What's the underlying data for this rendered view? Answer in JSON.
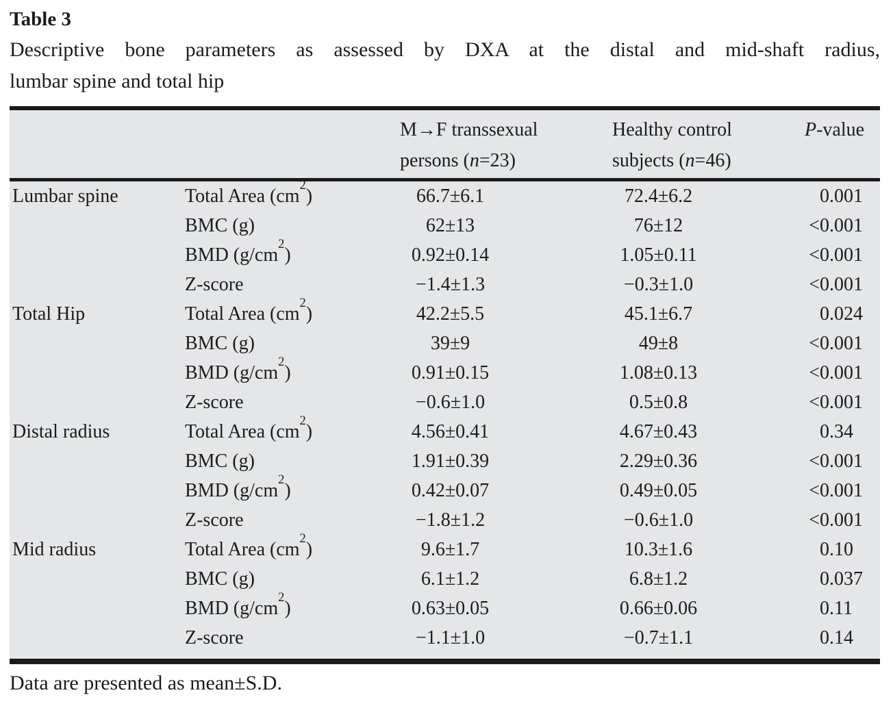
{
  "page": {
    "title": "Table 3",
    "caption_line1": "Descriptive bone parameters as assessed by DXA at the distal and mid-shaft radius,",
    "caption_line2": "lumbar spine and total hip",
    "footnote": "Data are presented as mean±S.D."
  },
  "colors": {
    "table_background": "#e5e6e7",
    "rule": "#1a1a18",
    "text": "#1d1c1a",
    "page_background": "#ffffff"
  },
  "table": {
    "columns": {
      "site": "",
      "parameter": "",
      "group1": {
        "line1": "M→F transsexual",
        "line2": "persons (n=23)"
      },
      "group2": {
        "line1": "Healthy control",
        "line2": "subjects (n=46)"
      },
      "p": "P-value"
    },
    "sections": [
      {
        "site": "Lumbar spine",
        "rows": [
          {
            "parameter": "Total Area (cm²)",
            "group1": "66.7±6.1",
            "group2": "72.4±6.2",
            "p": "0.001"
          },
          {
            "parameter": "BMC (g)",
            "group1": "62±13",
            "group2": "76±12",
            "p": "<0.001"
          },
          {
            "parameter": "BMD (g/cm²)",
            "group1": "0.92±0.14",
            "group2": "1.05±0.11",
            "p": "<0.001"
          },
          {
            "parameter": "Z-score",
            "group1": "−1.4±1.3",
            "group2": "−0.3±1.0",
            "p": "<0.001"
          }
        ]
      },
      {
        "site": "Total Hip",
        "rows": [
          {
            "parameter": "Total Area (cm²)",
            "group1": "42.2±5.5",
            "group2": "45.1±6.7",
            "p": "0.024"
          },
          {
            "parameter": "BMC (g)",
            "group1": "39±9",
            "group2": "49±8",
            "p": "<0.001"
          },
          {
            "parameter": "BMD (g/cm²)",
            "group1": "0.91±0.15",
            "group2": "1.08±0.13",
            "p": "<0.001"
          },
          {
            "parameter": "Z-score",
            "group1": "−0.6±1.0",
            "group2": "0.5±0.8",
            "p": "<0.001"
          }
        ]
      },
      {
        "site": "Distal radius",
        "rows": [
          {
            "parameter": "Total Area (cm²)",
            "group1": "4.56±0.41",
            "group2": "4.67±0.43",
            "p": "0.34"
          },
          {
            "parameter": "BMC (g)",
            "group1": "1.91±0.39",
            "group2": "2.29±0.36",
            "p": "<0.001"
          },
          {
            "parameter": "BMD (g/cm²)",
            "group1": "0.42±0.07",
            "group2": "0.49±0.05",
            "p": "<0.001"
          },
          {
            "parameter": "Z-score",
            "group1": "−1.8±1.2",
            "group2": "−0.6±1.0",
            "p": "<0.001"
          }
        ]
      },
      {
        "site": "Mid radius",
        "rows": [
          {
            "parameter": "Total Area (cm²)",
            "group1": "9.6±1.7",
            "group2": "10.3±1.6",
            "p": "0.10"
          },
          {
            "parameter": "BMC (g)",
            "group1": "6.1±1.2",
            "group2": "6.8±1.2",
            "p": "0.037"
          },
          {
            "parameter": "BMD (g/cm²)",
            "group1": "0.63±0.05",
            "group2": "0.66±0.06",
            "p": "0.11"
          },
          {
            "parameter": "Z-score",
            "group1": "−1.1±1.0",
            "group2": "−0.7±1.1",
            "p": "0.14"
          }
        ]
      }
    ]
  }
}
